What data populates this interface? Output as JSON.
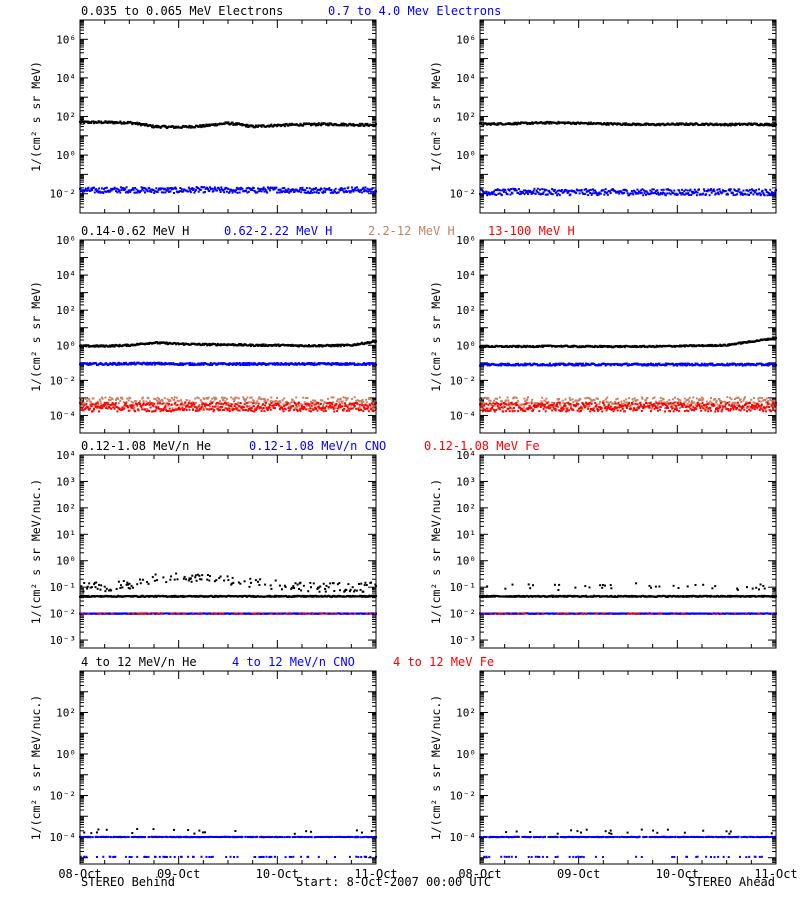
{
  "colors": {
    "black": "#000000",
    "blue": "#0000ff",
    "salmon": "#c88060",
    "red": "#ff0000"
  },
  "chart_data": [
    {
      "type": "scatter",
      "name": "electrons",
      "ylabel": "1/(cm² s sr MeV)",
      "yscale": "log",
      "ylim": [
        0.001,
        10000000
      ],
      "yticks": [
        0.01,
        1,
        100,
        10000,
        1000000
      ],
      "ytick_labels": [
        "10⁻²",
        "10⁰",
        "10²",
        "10⁴",
        "10⁶"
      ],
      "series_labels": [
        {
          "text": "0.035 to 0.065 MeV Electrons",
          "color": "black"
        },
        {
          "text": "0.7 to 4.0 Mev Electrons",
          "color": "blue"
        }
      ],
      "left": {
        "series": [
          {
            "color": "black",
            "level": [
              50,
              50,
              48,
              30,
              28,
              32,
              45,
              30,
              35,
              38,
              40,
              38,
              36
            ],
            "scatter": 1.15
          },
          {
            "color": "blue",
            "level": [
              0.015,
              0.015,
              0.016,
              0.015,
              0.015,
              0.016,
              0.015,
              0.015,
              0.016,
              0.015,
              0.015,
              0.016,
              0.015
            ],
            "scatter": 1.4
          }
        ]
      },
      "right": {
        "series": [
          {
            "color": "black",
            "level": [
              40,
              42,
              45,
              48,
              45,
              42,
              40,
              38,
              40,
              40,
              38,
              40,
              38
            ],
            "scatter": 1.12
          },
          {
            "color": "blue",
            "level": [
              0.012,
              0.012,
              0.013,
              0.012,
              0.012,
              0.012,
              0.012,
              0.012,
              0.012,
              0.012,
              0.012,
              0.012,
              0.012
            ],
            "scatter": 1.45
          }
        ]
      }
    },
    {
      "type": "scatter",
      "name": "protons",
      "ylabel": "1/(cm² s sr MeV)",
      "yscale": "log",
      "ylim": [
        1e-05,
        1000000
      ],
      "yticks": [
        0.0001,
        0.01,
        1,
        100,
        10000,
        1000000
      ],
      "ytick_labels": [
        "10⁻⁴",
        "10⁻²",
        "10⁰",
        "10²",
        "10⁴",
        "10⁶"
      ],
      "series_labels": [
        {
          "text": "0.14-0.62 MeV H",
          "color": "black"
        },
        {
          "text": "0.62-2.22 MeV H",
          "color": "blue"
        },
        {
          "text": "2.2-12 MeV H",
          "color": "salmon"
        },
        {
          "text": "13-100 MeV H",
          "color": "red"
        }
      ],
      "left": {
        "series": [
          {
            "color": "black",
            "level": [
              0.9,
              0.9,
              1.0,
              1.4,
              1.2,
              1.1,
              1.1,
              1.0,
              1.0,
              0.95,
              0.95,
              1.0,
              1.6
            ],
            "scatter": 1.12
          },
          {
            "color": "blue",
            "level": [
              0.085,
              0.085,
              0.09,
              0.09,
              0.085,
              0.085,
              0.085,
              0.085,
              0.085,
              0.085,
              0.085,
              0.085,
              0.085
            ],
            "scatter": 1.15
          },
          {
            "color": "salmon",
            "level": [
              0.0005,
              0.0005,
              0.0005,
              0.0005,
              0.0005,
              0.0005,
              0.0005,
              0.0005,
              0.0005,
              0.0005,
              0.0005,
              0.0005,
              0.0005
            ],
            "scatter": 2.2
          },
          {
            "color": "red",
            "level": [
              0.0003,
              0.0003,
              0.0003,
              0.0003,
              0.0003,
              0.0003,
              0.0003,
              0.0003,
              0.0003,
              0.0003,
              0.0003,
              0.0003,
              0.0003
            ],
            "scatter": 1.8
          }
        ]
      },
      "right": {
        "series": [
          {
            "color": "black",
            "level": [
              0.85,
              0.85,
              0.85,
              0.9,
              0.85,
              0.85,
              0.85,
              0.85,
              0.9,
              0.95,
              1.0,
              1.6,
              2.5
            ],
            "scatter": 1.1
          },
          {
            "color": "blue",
            "level": [
              0.08,
              0.08,
              0.08,
              0.08,
              0.08,
              0.08,
              0.08,
              0.08,
              0.08,
              0.08,
              0.08,
              0.08,
              0.08
            ],
            "scatter": 1.15
          },
          {
            "color": "salmon",
            "level": [
              0.0005,
              0.0005,
              0.0005,
              0.0005,
              0.0005,
              0.0005,
              0.0005,
              0.0005,
              0.0005,
              0.0005,
              0.0005,
              0.0005,
              0.0005
            ],
            "scatter": 2.2
          },
          {
            "color": "red",
            "level": [
              0.0003,
              0.0003,
              0.0003,
              0.0003,
              0.0003,
              0.0003,
              0.0003,
              0.0003,
              0.0003,
              0.0003,
              0.0003,
              0.0003,
              0.0003
            ],
            "scatter": 1.8
          }
        ]
      }
    },
    {
      "type": "scatter",
      "name": "low-energy heavy ions",
      "ylabel": "1/(cm² s sr MeV/nuc.)",
      "yscale": "log",
      "ylim": [
        0.0005,
        10000
      ],
      "yticks": [
        0.001,
        0.01,
        0.1,
        1,
        10,
        100,
        1000,
        10000
      ],
      "ytick_labels": [
        "10⁻³",
        "10⁻²",
        "10⁻¹",
        "10⁰",
        "10¹",
        "10²",
        "10³",
        "10⁴"
      ],
      "series_labels": [
        {
          "text": "0.12-1.08 MeV/n He",
          "color": "black"
        },
        {
          "text": "0.12-1.08 MeV/n CNO",
          "color": "blue"
        },
        {
          "text": "0.12-1.08 MeV Fe",
          "color": "red"
        }
      ],
      "left": {
        "series": [
          {
            "color": "black",
            "level": [
              0.045,
              0.045,
              0.045,
              0.045,
              0.045,
              0.045,
              0.045,
              0.045,
              0.045,
              0.045,
              0.045,
              0.045,
              0.045
            ],
            "scatter": 1.05
          },
          {
            "color": "black",
            "level": [
              0.1,
              0.1,
              0.12,
              0.2,
              0.25,
              0.2,
              0.18,
              0.15,
              0.12,
              0.1,
              0.1,
              0.1,
              0.1
            ],
            "scatter": 1.5,
            "sparse": 0.35
          },
          {
            "color": "blue",
            "level": [
              0.01,
              0.01,
              0.01,
              0.01,
              0.01,
              0.01,
              0.01,
              0.01,
              0.01,
              0.01,
              0.01,
              0.01,
              0.01
            ],
            "scatter": 1.02
          },
          {
            "color": "red",
            "level": [
              0.01,
              0.01,
              0.01,
              0.01,
              0.01,
              0.01,
              0.01,
              0.01,
              0.01,
              0.01,
              0.01,
              0.01,
              0.01
            ],
            "scatter": 1.02,
            "sparse": 0.15
          }
        ]
      },
      "right": {
        "series": [
          {
            "color": "black",
            "level": [
              0.045,
              0.045,
              0.045,
              0.045,
              0.045,
              0.045,
              0.045,
              0.045,
              0.045,
              0.045,
              0.045,
              0.045,
              0.045
            ],
            "scatter": 1.05
          },
          {
            "color": "black",
            "level": [
              0.1,
              0.1,
              0.1,
              0.1,
              0.1,
              0.1,
              0.12,
              0.12,
              0.1,
              0.1,
              0.1,
              0.1,
              0.1
            ],
            "scatter": 1.3,
            "sparse": 0.12
          },
          {
            "color": "blue",
            "level": [
              0.01,
              0.01,
              0.01,
              0.01,
              0.01,
              0.01,
              0.01,
              0.01,
              0.01,
              0.01,
              0.01,
              0.01,
              0.01
            ],
            "scatter": 1.02
          },
          {
            "color": "red",
            "level": [
              0.01,
              0.01,
              0.01,
              0.01,
              0.01,
              0.01,
              0.01,
              0.01,
              0.01,
              0.01,
              0.01,
              0.01,
              0.01
            ],
            "scatter": 1.02,
            "sparse": 0.12
          }
        ]
      }
    },
    {
      "type": "scatter",
      "name": "high-energy heavy ions",
      "ylabel": "1/(cm² s sr MeV/nuc.)",
      "yscale": "log",
      "ylim": [
        5e-06,
        10000
      ],
      "yticks": [
        0.0001,
        0.01,
        1,
        100
      ],
      "ytick_labels": [
        "10⁻⁴",
        "10⁻²",
        "10⁰",
        "10²"
      ],
      "series_labels": [
        {
          "text": "4 to 12 MeV/n He",
          "color": "black"
        },
        {
          "text": "4 to 12 MeV/n CNO",
          "color": "blue"
        },
        {
          "text": "4 to 12 MeV Fe",
          "color": "red"
        }
      ],
      "left": {
        "series": [
          {
            "color": "blue",
            "level": [
              0.0001,
              0.0001,
              0.0001,
              0.0001,
              0.0001,
              0.0001,
              0.0001,
              0.0001,
              0.0001,
              0.0001,
              0.0001,
              0.0001,
              0.0001
            ],
            "scatter": 1.02,
            "sparse": 0.7
          },
          {
            "color": "black",
            "level": [
              0.00018,
              0.00018,
              0.00018,
              0.00022,
              0.00018,
              0.00018,
              0.00018,
              0.00018,
              0.00018,
              0.00018,
              0.00018,
              0.00018,
              0.00018
            ],
            "scatter": 1.3,
            "sparse": 0.05
          },
          {
            "color": "blue",
            "level": [
              1.1e-05,
              1.1e-05,
              1.1e-05,
              1.1e-05,
              1.1e-05,
              1.1e-05,
              1.1e-05,
              1.1e-05,
              1.1e-05,
              1.1e-05,
              1.1e-05,
              1.1e-05,
              1.1e-05
            ],
            "scatter": 1.02,
            "sparse": 0.15
          }
        ]
      },
      "right": {
        "series": [
          {
            "color": "blue",
            "level": [
              0.0001,
              0.0001,
              0.0001,
              0.0001,
              0.0001,
              0.0001,
              0.0001,
              0.0001,
              0.0001,
              0.0001,
              0.0001,
              0.0001,
              0.0001
            ],
            "scatter": 1.02,
            "sparse": 0.7
          },
          {
            "color": "black",
            "level": [
              0.00018,
              0.00018,
              0.00018,
              0.00018,
              0.00018,
              0.00018,
              0.00018,
              0.00018,
              0.00018,
              0.00018,
              0.00018,
              0.00018,
              0.00018
            ],
            "scatter": 1.3,
            "sparse": 0.04
          },
          {
            "color": "blue",
            "level": [
              1.1e-05,
              1.1e-05,
              1.1e-05,
              1.1e-05,
              1.1e-05,
              1.1e-05,
              1.1e-05,
              1.1e-05,
              1.1e-05,
              1.1e-05,
              1.1e-05,
              1.1e-05,
              1.1e-05
            ],
            "scatter": 1.02,
            "sparse": 0.12
          }
        ]
      }
    }
  ],
  "x_axis": {
    "tick_labels": [
      "08-Oct",
      "09-Oct",
      "10-Oct",
      "11-Oct"
    ],
    "xlim": [
      "2007-10-08 00:00",
      "2007-10-11 00:00"
    ]
  },
  "footer": {
    "left": "STEREO Behind",
    "center": "Start:  8-Oct-2007 00:00 UTC",
    "right": "STEREO Ahead"
  }
}
